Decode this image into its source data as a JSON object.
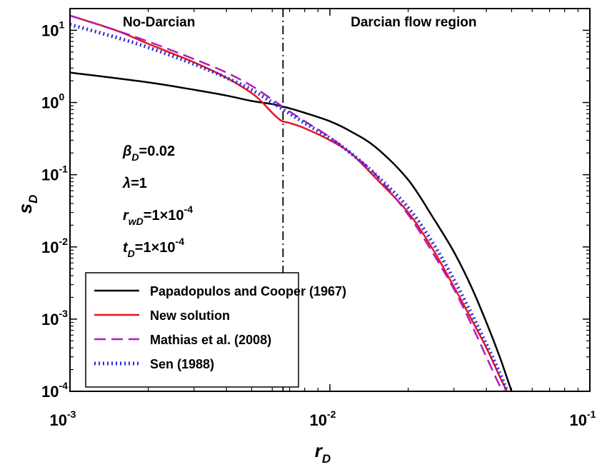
{
  "chart_data": {
    "type": "line",
    "title": "",
    "xlabel": {
      "main": "r",
      "sub": "D"
    },
    "ylabel": {
      "main": "s",
      "sub": "D"
    },
    "x_scale": "log",
    "y_scale": "log",
    "xlim": [
      0.001,
      0.1
    ],
    "ylim": [
      0.0001,
      20
    ],
    "grid": false,
    "x_ticks": [
      {
        "value": 0.001,
        "base": "10",
        "exp": "-3"
      },
      {
        "value": 0.01,
        "base": "10",
        "exp": "-2"
      },
      {
        "value": 0.1,
        "base": "10",
        "exp": "-1"
      }
    ],
    "y_ticks": [
      {
        "value": 0.0001,
        "base": "10",
        "exp": "-4"
      },
      {
        "value": 0.001,
        "base": "10",
        "exp": "-3"
      },
      {
        "value": 0.01,
        "base": "10",
        "exp": "-2"
      },
      {
        "value": 0.1,
        "base": "10",
        "exp": "-1"
      },
      {
        "value": 1,
        "base": "10",
        "exp": "0"
      },
      {
        "value": 10,
        "base": "10",
        "exp": "1"
      }
    ],
    "boundary_x": 0.0066,
    "regions": [
      {
        "label": "No-Darcian",
        "x": 0.0022
      },
      {
        "label": "Darcian flow region",
        "x": 0.021
      }
    ],
    "parameters": [
      {
        "main": "β",
        "sub": "D",
        "rest": "=0.02"
      },
      {
        "main": "λ",
        "sub": "",
        "rest": "=1"
      },
      {
        "main": "r",
        "sub": "wD",
        "rest": "=1×10",
        "sup": "-4"
      },
      {
        "main": "t",
        "sub": "D",
        "rest": "=1×10",
        "sup": "-4"
      }
    ],
    "legend_position": "bottom-left",
    "series": [
      {
        "name": "Papadopulos and Cooper (1967)",
        "color": "#000000",
        "style": "solid",
        "x": [
          0.001,
          0.002,
          0.003,
          0.004,
          0.005,
          0.006,
          0.007,
          0.008,
          0.01,
          0.012,
          0.015,
          0.02,
          0.025,
          0.03,
          0.035,
          0.04,
          0.045,
          0.05
        ],
        "y": [
          2.6,
          1.9,
          1.5,
          1.25,
          1.05,
          0.95,
          0.83,
          0.72,
          0.55,
          0.4,
          0.24,
          0.085,
          0.025,
          0.0085,
          0.0028,
          0.0009,
          0.0003,
          0.0001
        ]
      },
      {
        "name": "New solution",
        "color": "#e8141c",
        "style": "solid",
        "x": [
          0.001,
          0.0015,
          0.002,
          0.003,
          0.004,
          0.005,
          0.0055,
          0.006,
          0.0065,
          0.007,
          0.008,
          0.01,
          0.012,
          0.015,
          0.02,
          0.025,
          0.03,
          0.035,
          0.04,
          0.045,
          0.048
        ],
        "y": [
          16,
          10,
          6.5,
          3.6,
          2.2,
          1.35,
          1.0,
          0.72,
          0.56,
          0.52,
          0.44,
          0.3,
          0.2,
          0.09,
          0.03,
          0.009,
          0.0028,
          0.001,
          0.0004,
          0.00016,
          0.0001
        ]
      },
      {
        "name": "Mathias et al. (2008)",
        "color": "#b21bbf",
        "style": "dashed",
        "x": [
          0.001,
          0.0015,
          0.002,
          0.003,
          0.004,
          0.005,
          0.006,
          0.007,
          0.008,
          0.01,
          0.012,
          0.015,
          0.02,
          0.025,
          0.03,
          0.035,
          0.04,
          0.045,
          0.047
        ],
        "y": [
          16,
          10,
          7,
          4,
          2.6,
          1.7,
          1.1,
          0.75,
          0.55,
          0.33,
          0.2,
          0.1,
          0.028,
          0.008,
          0.0026,
          0.00085,
          0.0003,
          0.00012,
          0.0001
        ]
      },
      {
        "name": "Sen (1988)",
        "color": "#2b2bd6",
        "style": "dotted",
        "x": [
          0.001,
          0.0015,
          0.002,
          0.003,
          0.004,
          0.005,
          0.006,
          0.007,
          0.008,
          0.01,
          0.012,
          0.015,
          0.02,
          0.025,
          0.03,
          0.035,
          0.04,
          0.045,
          0.048
        ],
        "y": [
          12,
          8,
          5.8,
          3.4,
          2.2,
          1.5,
          1.0,
          0.7,
          0.52,
          0.32,
          0.2,
          0.1,
          0.035,
          0.011,
          0.0035,
          0.0012,
          0.00045,
          0.00018,
          0.0001
        ]
      }
    ]
  }
}
